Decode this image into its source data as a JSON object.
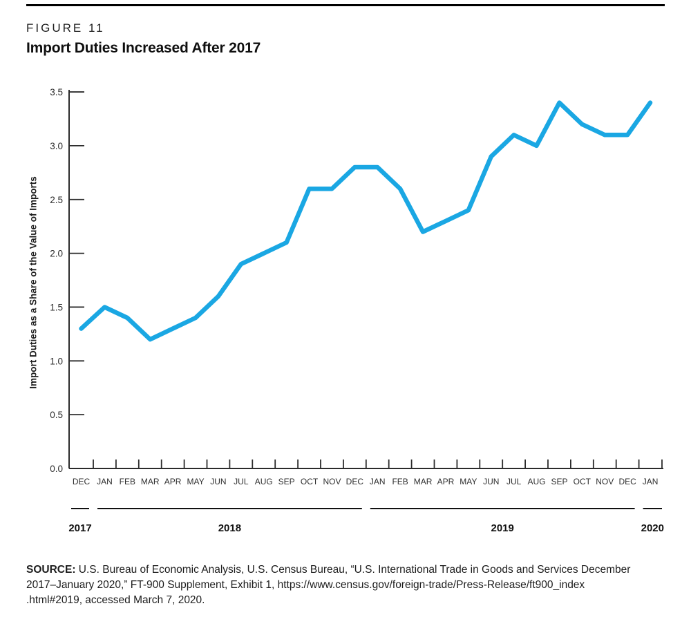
{
  "header": {
    "figure_label": "FIGURE 11",
    "title": "Import Duties Increased After 2017"
  },
  "chart_data": {
    "type": "line",
    "title": "Import Duties Increased After 2017",
    "xlabel": "",
    "ylabel": "Import Duties as a Share of the Value of Imports",
    "ylim": [
      0,
      3.5
    ],
    "y_ticks": [
      "0.0",
      "0.5",
      "1.0",
      "1.5",
      "2.0",
      "2.5",
      "3.0",
      "3.5"
    ],
    "grid": false,
    "legend_position": "none",
    "categories": [
      "DEC",
      "JAN",
      "FEB",
      "MAR",
      "APR",
      "MAY",
      "JUN",
      "JUL",
      "AUG",
      "SEP",
      "OCT",
      "NOV",
      "DEC",
      "JAN",
      "FEB",
      "MAR",
      "APR",
      "MAY",
      "JUN",
      "JUL",
      "AUG",
      "SEP",
      "OCT",
      "NOV",
      "DEC",
      "JAN"
    ],
    "year_groups": [
      {
        "label": "2017",
        "from": 0,
        "to": 0
      },
      {
        "label": "2018",
        "from": 1,
        "to": 12
      },
      {
        "label": "2019",
        "from": 13,
        "to": 24
      },
      {
        "label": "2020",
        "from": 25,
        "to": 25
      }
    ],
    "series": [
      {
        "name": "Import duties as a share of the value of imports",
        "values": [
          1.3,
          1.5,
          1.4,
          1.2,
          1.3,
          1.4,
          1.6,
          1.9,
          2.0,
          2.1,
          2.6,
          2.6,
          2.8,
          2.8,
          2.6,
          2.2,
          2.3,
          2.4,
          2.9,
          3.1,
          3.0,
          3.4,
          3.2,
          3.1,
          3.1,
          3.4
        ]
      }
    ]
  },
  "colors": {
    "line": "#1AA7E3",
    "axis": "#2b2b2b",
    "tick_text": "#2b2b2b",
    "month_text": "#2e2e2e",
    "year_text": "#111111"
  },
  "source": {
    "label": "SOURCE:",
    "lines": [
      "U.S. Bureau of Economic Analysis, U.S. Census Bureau, “U.S. International Trade in Goods and Services December",
      "2017–January 2020,” FT-900 Supplement, Exhibit 1, https://www.census.gov/foreign-trade/Press-Release/ft900_index",
      ".html#2019, accessed March 7, 2020."
    ]
  }
}
